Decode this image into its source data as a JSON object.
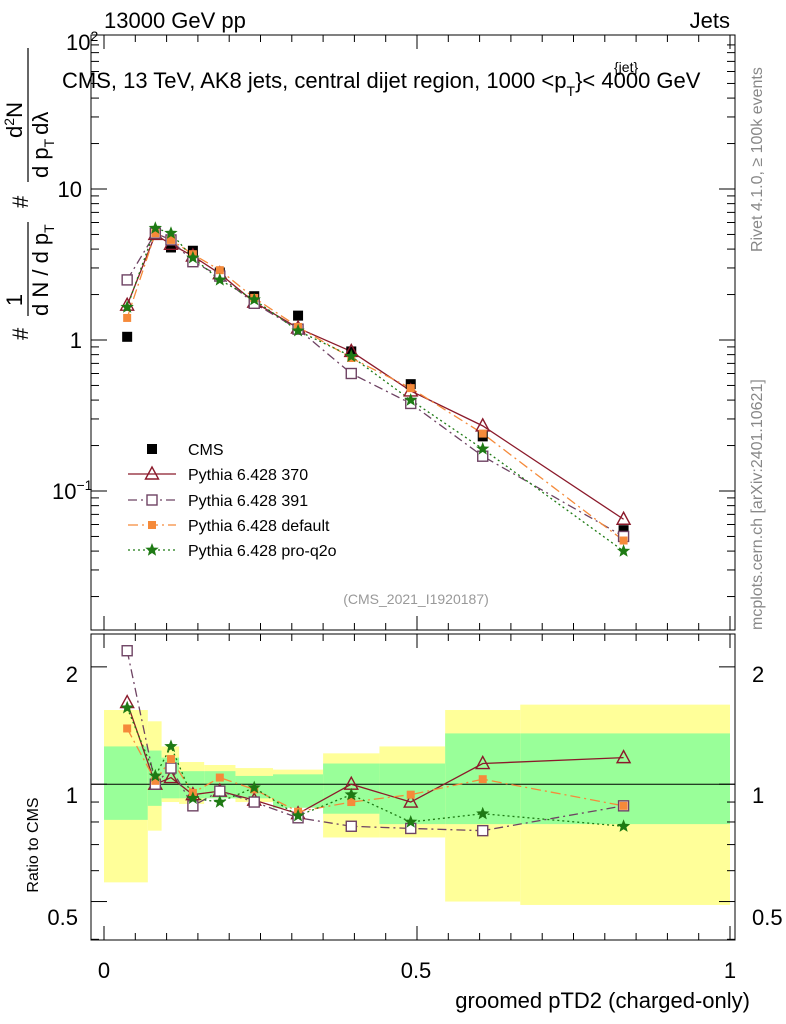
{
  "header": {
    "left": "13000 GeV pp",
    "right": "Jets"
  },
  "plot_title": "CMS, 13 TeV, AK8 jets, central dijet region, 1000 <p",
  "plot_title_sup": "{jet}",
  "plot_title_sub": "T",
  "plot_title_end": "}< 4000 GeV",
  "ylabel_top": {
    "hash1": "#",
    "one": "1",
    "frac_den": "d N / d p",
    "frac_den_sub": "T",
    "hash2": "#",
    "num": "d",
    "num_sup": "2",
    "num2": "N",
    "den": "d p",
    "den_sub": "T",
    "den2": "dλ"
  },
  "ylabel_bottom": "Ratio to CMS",
  "xlabel": "groomed pTD2 (charged-only)",
  "side_text_top": "Rivet 4.1.0, ≥ 100k events",
  "side_text_bottom": "mcplots.cern.ch [arXiv:2401.10621]",
  "watermark": "(CMS_2021_I1920187)",
  "top_ticks": {
    "t100": "10",
    "t100_exp": "2",
    "t10": "10",
    "t1": "1",
    "t01": "10",
    "t01_exp": "−1"
  },
  "bottom_ticks": [
    "2",
    "1",
    "0.5"
  ],
  "bottom_ticks_right": [
    "2",
    "1",
    "0.5"
  ],
  "x_ticks": [
    "0",
    "0.5",
    "1"
  ],
  "legend": [
    {
      "label": "CMS",
      "color": "#000000"
    },
    {
      "label": "Pythia 6.428 370",
      "color": "#8b1a2b"
    },
    {
      "label": "Pythia 6.428 391",
      "color": "#6e4363"
    },
    {
      "label": "Pythia 6.428 default",
      "color": "#f58a3a"
    },
    {
      "label": "Pythia 6.428 pro-q2o",
      "color": "#1e7a14"
    }
  ],
  "chart_data": {
    "type": "scatter",
    "title": "CMS, 13 TeV, AK8 jets, central dijet region, 1000 < pT(jet) < 4000 GeV",
    "xlabel": "groomed pTD2 (charged-only)",
    "ylabel": "1/N dN/dλ",
    "xlim": [
      0,
      1
    ],
    "ylim": [
      0.01,
      100
    ],
    "yscale": "log",
    "ratio_ylim": [
      0.38,
      2.4
    ],
    "x": [
      0.037,
      0.082,
      0.107,
      0.142,
      0.185,
      0.24,
      0.31,
      0.395,
      0.49,
      0.605,
      0.83
    ],
    "bin_edges": [
      0,
      0.07,
      0.092,
      0.12,
      0.16,
      0.21,
      0.27,
      0.35,
      0.44,
      0.545,
      0.665,
      1.0
    ],
    "band_yellow": [
      [
        0.56,
        1.55
      ],
      [
        0.76,
        1.45
      ],
      [
        0.9,
        1.25
      ],
      [
        0.89,
        1.14
      ],
      [
        0.92,
        1.12
      ],
      [
        0.9,
        1.1
      ],
      [
        0.9,
        1.09
      ],
      [
        0.73,
        1.2
      ],
      [
        0.73,
        1.25
      ],
      [
        0.5,
        1.55
      ],
      [
        0.49,
        1.6
      ]
    ],
    "band_green": [
      [
        0.81,
        1.25
      ],
      [
        0.88,
        1.22
      ],
      [
        0.92,
        1.17
      ],
      [
        0.92,
        1.08
      ],
      [
        0.92,
        1.08
      ],
      [
        0.92,
        1.05
      ],
      [
        0.87,
        1.06
      ],
      [
        0.84,
        1.13
      ],
      [
        0.79,
        1.13
      ],
      [
        0.79,
        1.35
      ],
      [
        0.79,
        1.35
      ]
    ],
    "series": [
      {
        "name": "CMS",
        "values": [
          1.05,
          5.0,
          4.1,
          3.9,
          2.8,
          1.95,
          1.45,
          0.84,
          0.51,
          0.23,
          0.055
        ],
        "ratio": [
          1,
          1,
          1,
          1,
          1,
          1,
          1,
          1,
          1,
          1,
          1
        ],
        "color": "#000000",
        "marker": "square"
      },
      {
        "name": "Pythia 6.428 370",
        "values": [
          1.7,
          5.0,
          4.3,
          3.6,
          2.75,
          1.78,
          1.2,
          0.84,
          0.46,
          0.27,
          0.065
        ],
        "ratio": [
          1.62,
          1.0,
          1.04,
          0.94,
          0.96,
          0.91,
          0.84,
          1.0,
          0.9,
          1.13,
          1.17
        ],
        "color": "#8b1a2b",
        "marker": "triangle",
        "dash": ""
      },
      {
        "name": "Pythia 6.428 391",
        "values": [
          2.5,
          5.1,
          4.6,
          3.3,
          2.65,
          1.75,
          1.18,
          0.6,
          0.38,
          0.17,
          0.05
        ],
        "ratio": [
          2.2,
          1.0,
          1.1,
          0.88,
          0.96,
          0.9,
          0.82,
          0.78,
          0.77,
          0.76,
          0.88
        ],
        "color": "#6e4363",
        "marker": "opensquare",
        "dash": "9 4 2 4"
      },
      {
        "name": "Pythia 6.428 default",
        "values": [
          1.4,
          5.1,
          4.6,
          3.7,
          2.9,
          1.9,
          1.22,
          0.76,
          0.48,
          0.24,
          0.047
        ],
        "ratio": [
          1.39,
          1.02,
          1.16,
          0.95,
          1.04,
          0.97,
          0.85,
          0.9,
          0.94,
          1.03,
          0.88
        ],
        "color": "#f58a3a",
        "marker": "filledsquare",
        "dash": "10 4 2 4"
      },
      {
        "name": "Pythia 6.428 pro-q2o",
        "values": [
          1.65,
          5.5,
          5.1,
          3.5,
          2.5,
          1.85,
          1.15,
          0.78,
          0.4,
          0.19,
          0.04
        ],
        "ratio": [
          1.57,
          1.05,
          1.25,
          0.92,
          0.9,
          0.98,
          0.83,
          0.94,
          0.8,
          0.84,
          0.78
        ],
        "color": "#1e7a14",
        "marker": "star",
        "dash": "2 3"
      }
    ]
  }
}
